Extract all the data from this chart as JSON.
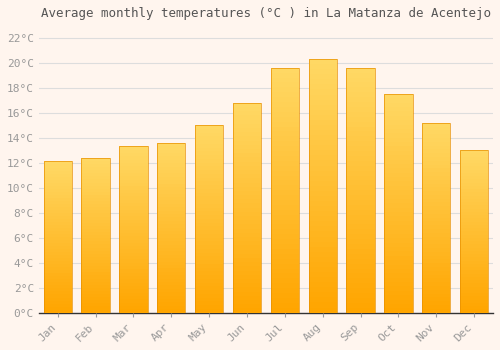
{
  "title": "Average monthly temperatures (°C ) in La Matanza de Acentejo",
  "months": [
    "Jan",
    "Feb",
    "Mar",
    "Apr",
    "May",
    "Jun",
    "Jul",
    "Aug",
    "Sep",
    "Oct",
    "Nov",
    "Dec"
  ],
  "values": [
    12.1,
    12.4,
    13.3,
    13.6,
    15.0,
    16.8,
    19.6,
    20.3,
    19.6,
    17.5,
    15.2,
    13.0
  ],
  "bar_color_top": "#FFD966",
  "bar_color_bottom": "#FFA500",
  "bar_edge_color": "#E89000",
  "background_color": "#FFF5EE",
  "grid_color": "#DDDDDD",
  "tick_color": "#999999",
  "title_color": "#555555",
  "label_color": "#999999",
  "axis_line_color": "#333333",
  "ylim": [
    0,
    23
  ],
  "yticks": [
    0,
    2,
    4,
    6,
    8,
    10,
    12,
    14,
    16,
    18,
    20,
    22
  ],
  "ytick_labels": [
    "0°C",
    "2°C",
    "4°C",
    "6°C",
    "8°C",
    "10°C",
    "12°C",
    "14°C",
    "16°C",
    "18°C",
    "20°C",
    "22°C"
  ],
  "title_fontsize": 9,
  "tick_fontsize": 8,
  "bar_width": 0.75
}
